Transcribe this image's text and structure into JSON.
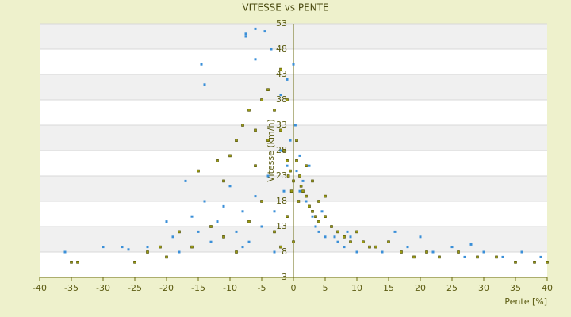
{
  "chart_data": {
    "type": "scatter",
    "title": "VITESSE vs PENTE",
    "x_label": "Pente [%]",
    "y_label": "Vitesse (km/h)",
    "xlim": [
      -40,
      40
    ],
    "xticks": [
      -40,
      -35,
      -30,
      -25,
      -20,
      -15,
      -10,
      -5,
      0,
      5,
      10,
      15,
      20,
      25,
      30,
      35,
      40
    ],
    "ylim": [
      3,
      53
    ],
    "yticks": [
      3,
      8,
      13,
      18,
      23,
      28,
      33,
      38,
      43,
      48,
      53
    ],
    "grid": true,
    "series": [
      {
        "color": "#3a8fd8",
        "x": [
          -6,
          -7.5,
          -4.5,
          -7.5,
          -6,
          -14.5,
          -14,
          -3.5,
          0,
          -1,
          -2,
          -36,
          -30,
          -27,
          -26,
          -23,
          -20,
          -19,
          -17,
          -16,
          -15,
          -14,
          -13,
          -12,
          -11,
          -10,
          -9,
          -8,
          -7,
          -6,
          -5,
          -4,
          -3,
          -2,
          -1,
          -0.5,
          0.3,
          1,
          1.5,
          2,
          3,
          4,
          5,
          6,
          7,
          8,
          9,
          10,
          11,
          12,
          14,
          16,
          18,
          20,
          22,
          25,
          27,
          30,
          33,
          36,
          39,
          2.5,
          -1.5,
          1,
          0.5,
          3.5,
          6.5,
          8.5,
          4.5,
          -3,
          -8,
          -18,
          28
        ],
        "values": [
          52,
          51,
          51.5,
          50.5,
          46,
          45,
          41,
          48,
          45,
          42,
          39,
          8,
          9,
          9,
          8.5,
          9,
          14,
          11,
          22,
          15,
          12,
          18,
          10,
          14,
          17,
          21,
          12,
          16,
          10,
          19,
          13,
          23,
          8,
          28,
          25,
          30,
          33,
          27,
          22,
          18,
          15,
          12,
          11,
          13,
          10,
          9,
          11,
          8,
          10,
          9,
          8,
          12,
          9,
          11,
          8,
          9,
          7,
          8,
          7,
          8,
          7,
          25,
          20,
          20,
          24,
          13,
          11,
          12,
          16,
          16,
          9,
          8,
          9.5
        ]
      },
      {
        "color": "#9a9a10",
        "x": [
          -35,
          -34,
          -25,
          -21,
          -20,
          -16,
          -15,
          -12,
          -11,
          -10,
          -9,
          -8,
          -7,
          -6,
          -5,
          -4,
          -3,
          -2,
          -1.5,
          -1,
          -0.5,
          0,
          0.5,
          1,
          1.5,
          2,
          2.5,
          3,
          3.5,
          4,
          5,
          6,
          7,
          8,
          9,
          10,
          11,
          12,
          13,
          15,
          17,
          19,
          21,
          23,
          26,
          29,
          32,
          35,
          38,
          40,
          -13,
          -11,
          -9,
          -7,
          -5,
          -3,
          -2,
          -1,
          0,
          -18,
          -23,
          -6,
          -4,
          -2,
          -1,
          0.5,
          2,
          3,
          4,
          5,
          -0.3,
          0.8,
          1.2,
          -0.8
        ],
        "values": [
          6,
          6,
          6,
          9,
          7,
          9,
          24,
          26,
          22,
          27,
          30,
          33,
          36,
          32,
          38,
          40,
          36,
          32,
          28,
          26,
          24,
          22,
          26,
          23,
          20,
          19,
          17,
          16,
          15,
          14,
          15,
          13,
          12,
          11,
          10,
          12,
          10,
          9,
          9,
          10,
          8,
          7,
          8,
          7,
          8,
          7,
          7,
          6,
          6,
          6,
          13,
          11,
          8,
          14,
          18,
          12,
          9,
          15,
          10,
          12,
          8,
          25,
          30,
          44,
          38,
          30,
          25,
          22,
          18,
          19,
          20,
          18,
          21,
          23
        ]
      }
    ]
  }
}
